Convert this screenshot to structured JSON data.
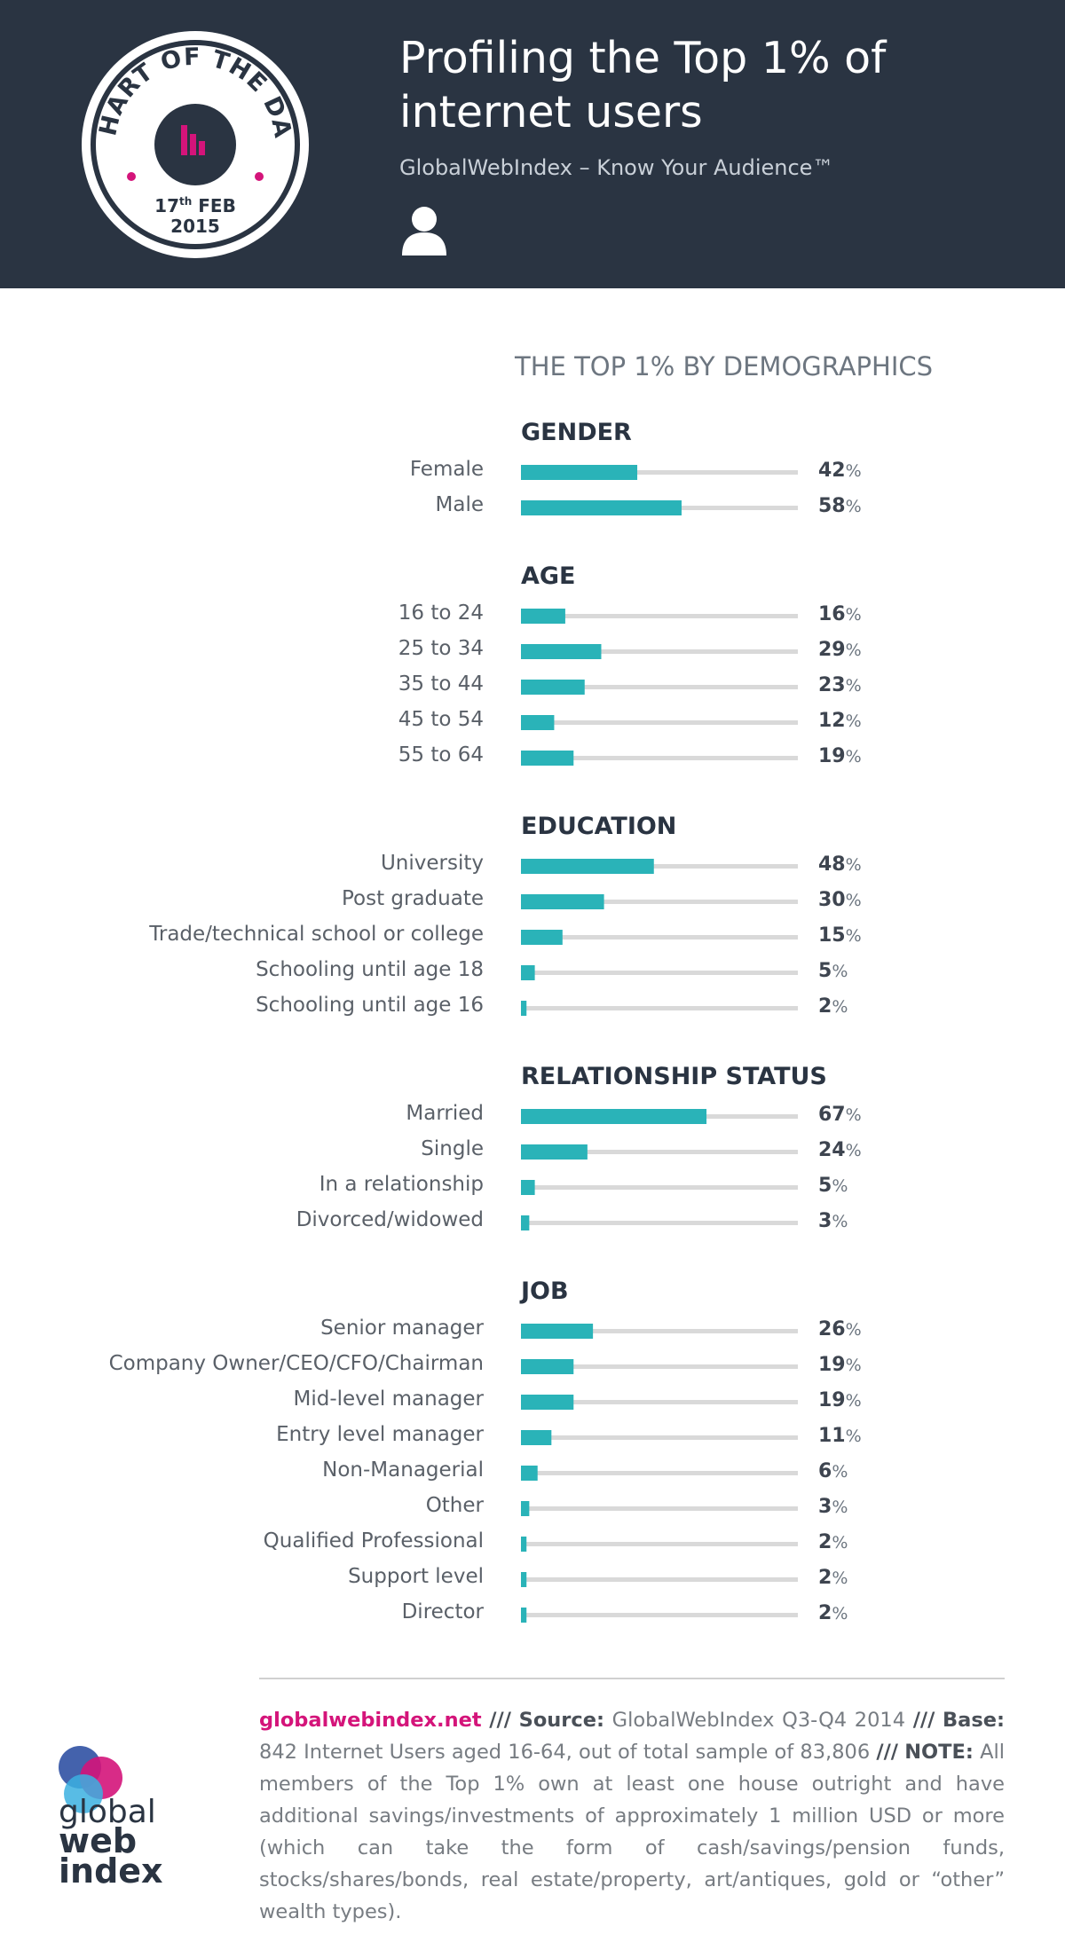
{
  "header": {
    "badge_text": "CHART OF THE DAY",
    "badge_day": "17",
    "badge_suffix": "th",
    "badge_month": "FEB",
    "badge_year": "2015",
    "title_line1": "Profiling the Top 1% of",
    "title_line2": "internet users",
    "subtitle": "GlobalWebIndex – Know Your Audience™"
  },
  "colors": {
    "header_bg": "#2a3442",
    "bar": "#2ab3b8",
    "track": "#d9d9d9",
    "accent": "#d4147a"
  },
  "chart_data": {
    "type": "bar",
    "orientation": "horizontal",
    "title": "THE TOP 1% BY DEMOGRAPHICS",
    "unit": "%",
    "xlim": [
      0,
      100
    ],
    "groups": [
      {
        "name": "GENDER",
        "items": [
          {
            "label": "Female",
            "value": 42
          },
          {
            "label": "Male",
            "value": 58
          }
        ]
      },
      {
        "name": "AGE",
        "items": [
          {
            "label": "16 to 24",
            "value": 16
          },
          {
            "label": "25 to 34",
            "value": 29
          },
          {
            "label": "35 to 44",
            "value": 23
          },
          {
            "label": "45 to 54",
            "value": 12
          },
          {
            "label": "55 to 64",
            "value": 19
          }
        ]
      },
      {
        "name": "EDUCATION",
        "items": [
          {
            "label": "University",
            "value": 48
          },
          {
            "label": "Post graduate",
            "value": 30
          },
          {
            "label": "Trade/technical school or college",
            "value": 15
          },
          {
            "label": "Schooling until age 18",
            "value": 5
          },
          {
            "label": "Schooling until age 16",
            "value": 2
          }
        ]
      },
      {
        "name": "RELATIONSHIP STATUS",
        "items": [
          {
            "label": "Married",
            "value": 67
          },
          {
            "label": "Single",
            "value": 24
          },
          {
            "label": "In a relationship",
            "value": 5
          },
          {
            "label": "Divorced/widowed",
            "value": 3
          }
        ]
      },
      {
        "name": "JOB",
        "items": [
          {
            "label": "Senior manager",
            "value": 26
          },
          {
            "label": "Company Owner/CEO/CFO/Chairman",
            "value": 19
          },
          {
            "label": "Mid-level manager",
            "value": 19
          },
          {
            "label": "Entry level manager",
            "value": 11
          },
          {
            "label": "Non-Managerial",
            "value": 6
          },
          {
            "label": "Other",
            "value": 3
          },
          {
            "label": "Qualified Professional",
            "value": 2
          },
          {
            "label": "Support level",
            "value": 2
          },
          {
            "label": "Director",
            "value": 2
          }
        ]
      }
    ]
  },
  "footer": {
    "link": "globalwebindex.net",
    "sep": "///",
    "source_label": "Source:",
    "source_text": "GlobalWebIndex Q3-Q4 2014",
    "base_label": "Base:",
    "base_text": "842 Internet Users aged 16-64, out of total sample of 83,806",
    "note_label": "NOTE:",
    "note_text": "All members of the Top 1% own at least one house outright and have additional savings/investments of approximately 1 million USD or more (which can take the form of cash/savings/pension funds, stocks/shares/bonds, real estate/property, art/antiques, gold or “other” wealth types).",
    "logo_word1": "global",
    "logo_word2": "web",
    "logo_word3": "index"
  }
}
